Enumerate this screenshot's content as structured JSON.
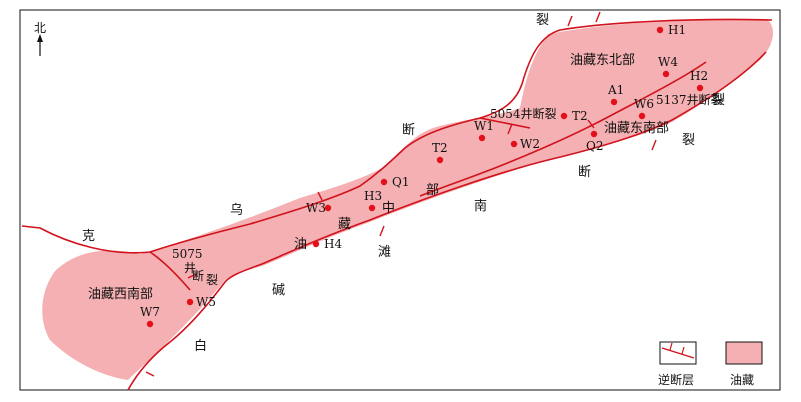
{
  "map": {
    "north_label": "北",
    "regions": {
      "ne": "油藏东北部",
      "se": "油藏东南部",
      "sw": "油藏西南部",
      "central": [
        "油",
        "藏",
        "中",
        "部"
      ]
    },
    "faults": {
      "f5054": "5054井断裂",
      "f5137": "5137井断裂",
      "f5075": [
        "5075",
        "井",
        "断",
        "裂"
      ],
      "wubai": [
        "克",
        "乌",
        "断",
        "裂"
      ],
      "nanbai": [
        "南",
        "滩",
        "碱",
        "白"
      ],
      "east": [
        "裂",
        "裂",
        "断"
      ]
    },
    "wells": [
      {
        "name": "H1"
      },
      {
        "name": "W4"
      },
      {
        "name": "H2"
      },
      {
        "name": "A1"
      },
      {
        "name": "W6"
      },
      {
        "name": "T2"
      },
      {
        "name": "Q2"
      },
      {
        "name": "W1"
      },
      {
        "name": "W2"
      },
      {
        "name": "T2"
      },
      {
        "name": "Q1"
      },
      {
        "name": "H3"
      },
      {
        "name": "W3"
      },
      {
        "name": "H4"
      },
      {
        "name": "W5"
      },
      {
        "name": "W7"
      }
    ],
    "legend": {
      "reverse_fault": "逆断层",
      "reservoir": "油藏"
    },
    "colors": {
      "reservoir_fill": "#f4b0b2",
      "fault_line": "#d0131d",
      "well": "#e3101b"
    }
  }
}
